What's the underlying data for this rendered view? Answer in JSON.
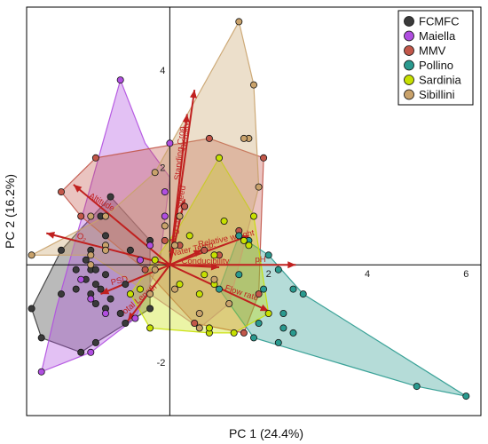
{
  "chart_data": {
    "type": "scatter",
    "title": "",
    "xlabel": "PC 1 (24.4%)",
    "ylabel": "PC 2 (16.2%)",
    "xlim": [
      -2.9,
      6.3
    ],
    "ylim": [
      -3.1,
      5.3
    ],
    "xticks": [
      "2",
      "4",
      "6"
    ],
    "yticks": [
      "4",
      "2",
      "-2"
    ],
    "legend_position": "top-right",
    "series": [
      {
        "name": "FCMFC",
        "color": "#3a3a3a",
        "hull": [
          [
            -2.8,
            -0.9
          ],
          [
            -2.2,
            0.3
          ],
          [
            -1.2,
            1.4
          ],
          [
            -0.4,
            0.5
          ],
          [
            -0.4,
            -0.9
          ],
          [
            -1.5,
            -1.6
          ],
          [
            -1.8,
            -1.8
          ],
          [
            -2.6,
            -1.5
          ]
        ],
        "points": [
          [
            -2.8,
            -0.9
          ],
          [
            -2.2,
            0.3
          ],
          [
            -1.2,
            1.4
          ],
          [
            -1.4,
            1.0
          ],
          [
            -1.3,
            0.6
          ],
          [
            -1.6,
            0.3
          ],
          [
            -1.7,
            0.1
          ],
          [
            -1.9,
            -0.1
          ],
          [
            -1.6,
            -0.1
          ],
          [
            -1.5,
            -0.1
          ],
          [
            -1.3,
            -0.2
          ],
          [
            -1.7,
            -0.3
          ],
          [
            -1.5,
            -0.4
          ],
          [
            -1.4,
            -0.5
          ],
          [
            -1.9,
            -0.5
          ],
          [
            -1.6,
            -0.6
          ],
          [
            -1.2,
            -0.7
          ],
          [
            -1.5,
            -0.8
          ],
          [
            -1.3,
            -0.9
          ],
          [
            -1.0,
            -1.0
          ],
          [
            -0.9,
            -1.2
          ],
          [
            -1.5,
            -1.6
          ],
          [
            -1.8,
            -1.8
          ],
          [
            -2.6,
            -1.5
          ],
          [
            -0.4,
            0.5
          ],
          [
            -0.4,
            -0.9
          ],
          [
            -0.8,
            0.3
          ],
          [
            -0.9,
            -0.4
          ],
          [
            -2.2,
            -0.6
          ]
        ]
      },
      {
        "name": "Maiella",
        "color": "#b04ee0",
        "hull": [
          [
            -2.6,
            -2.2
          ],
          [
            -2.3,
            -0.9
          ],
          [
            -1.0,
            3.8
          ],
          [
            -0.5,
            2.5
          ],
          [
            0.0,
            1.8
          ],
          [
            -0.2,
            0.1
          ],
          [
            -0.7,
            -1.1
          ],
          [
            -1.6,
            -1.8
          ]
        ],
        "points": [
          [
            -2.6,
            -2.2
          ],
          [
            -1.0,
            3.8
          ],
          [
            0.0,
            2.5
          ],
          [
            -0.1,
            1.5
          ],
          [
            -0.1,
            1.0
          ],
          [
            -0.4,
            0.4
          ],
          [
            -0.6,
            0.1
          ],
          [
            -1.8,
            -0.3
          ],
          [
            -1.6,
            -0.7
          ],
          [
            -1.3,
            -1.0
          ],
          [
            -0.8,
            -0.6
          ],
          [
            -1.6,
            -1.8
          ],
          [
            -0.7,
            -1.1
          ]
        ]
      },
      {
        "name": "MMV",
        "color": "#c2574a",
        "hull": [
          [
            -2.2,
            1.5
          ],
          [
            -1.5,
            2.2
          ],
          [
            0.8,
            2.6
          ],
          [
            1.9,
            2.2
          ],
          [
            1.8,
            -0.6
          ],
          [
            1.5,
            -1.4
          ],
          [
            0.5,
            -1.2
          ],
          [
            -0.5,
            -0.1
          ],
          [
            -1.8,
            1.0
          ]
        ],
        "points": [
          [
            -2.2,
            1.5
          ],
          [
            -1.5,
            2.2
          ],
          [
            0.8,
            2.6
          ],
          [
            1.9,
            2.2
          ],
          [
            1.8,
            -0.6
          ],
          [
            1.5,
            -1.4
          ],
          [
            0.5,
            -1.2
          ],
          [
            -0.5,
            -0.1
          ],
          [
            -1.8,
            1.0
          ],
          [
            0.3,
            1.2
          ],
          [
            1.0,
            0.2
          ],
          [
            0.7,
            0.3
          ],
          [
            0.2,
            0.4
          ],
          [
            1.4,
            0.7
          ],
          [
            -0.1,
            0.5
          ]
        ]
      },
      {
        "name": "Pollino",
        "color": "#2a9a8f",
        "hull": [
          [
            1.4,
            0.6
          ],
          [
            2.0,
            0.2
          ],
          [
            2.7,
            -0.6
          ],
          [
            6.0,
            -2.7
          ],
          [
            5.0,
            -2.5
          ],
          [
            1.7,
            -1.5
          ],
          [
            1.0,
            -0.5
          ]
        ],
        "points": [
          [
            1.4,
            0.6
          ],
          [
            1.6,
            0.5
          ],
          [
            2.0,
            0.2
          ],
          [
            2.2,
            -0.1
          ],
          [
            2.5,
            -0.5
          ],
          [
            2.7,
            -0.6
          ],
          [
            6.0,
            -2.7
          ],
          [
            5.0,
            -2.5
          ],
          [
            2.3,
            -1.0
          ],
          [
            2.5,
            -1.4
          ],
          [
            2.3,
            -1.3
          ],
          [
            1.8,
            -1.2
          ],
          [
            1.7,
            -1.5
          ],
          [
            2.2,
            -1.6
          ],
          [
            1.0,
            -0.5
          ],
          [
            1.4,
            -0.2
          ],
          [
            1.9,
            -0.5
          ]
        ]
      },
      {
        "name": "Sardinia",
        "color": "#c7e000",
        "hull": [
          [
            1.0,
            2.2
          ],
          [
            1.7,
            1.0
          ],
          [
            2.0,
            -1.0
          ],
          [
            1.3,
            -1.4
          ],
          [
            0.8,
            -1.4
          ],
          [
            -0.4,
            -1.3
          ],
          [
            -0.8,
            -0.6
          ],
          [
            0.2,
            0.8
          ],
          [
            0.6,
            1.5
          ]
        ],
        "points": [
          [
            1.0,
            2.2
          ],
          [
            1.7,
            1.0
          ],
          [
            2.0,
            -1.0
          ],
          [
            1.3,
            -1.4
          ],
          [
            0.8,
            -1.4
          ],
          [
            0.8,
            -1.3
          ],
          [
            -0.4,
            -1.3
          ],
          [
            -0.8,
            -0.6
          ],
          [
            -0.6,
            -0.5
          ],
          [
            -0.3,
            0.1
          ],
          [
            0.4,
            0.6
          ],
          [
            1.5,
            0.5
          ],
          [
            1.6,
            0.4
          ],
          [
            1.1,
            0.9
          ],
          [
            0.9,
            -0.4
          ],
          [
            0.6,
            -0.6
          ],
          [
            0.7,
            -0.2
          ],
          [
            0.2,
            -0.4
          ],
          [
            0.9,
            0.2
          ]
        ]
      },
      {
        "name": "Sibillini",
        "color": "#c9a26b",
        "hull": [
          [
            -2.8,
            0.2
          ],
          [
            -1.3,
            1.0
          ],
          [
            -0.3,
            1.9
          ],
          [
            1.4,
            5.0
          ],
          [
            1.7,
            3.7
          ],
          [
            1.8,
            1.6
          ],
          [
            1.2,
            -0.8
          ],
          [
            0.6,
            -1.3
          ],
          [
            -0.4,
            -0.6
          ],
          [
            -1.6,
            0.2
          ]
        ],
        "points": [
          [
            -2.8,
            0.2
          ],
          [
            -1.3,
            1.0
          ],
          [
            -0.3,
            1.9
          ],
          [
            1.4,
            5.0
          ],
          [
            1.7,
            3.7
          ],
          [
            1.6,
            2.6
          ],
          [
            1.5,
            2.6
          ],
          [
            1.8,
            1.6
          ],
          [
            1.2,
            -0.8
          ],
          [
            0.6,
            -1.3
          ],
          [
            -0.4,
            -0.6
          ],
          [
            -1.6,
            0.2
          ],
          [
            -1.3,
            0.4
          ],
          [
            -1.6,
            1.0
          ],
          [
            -0.1,
            0.8
          ],
          [
            0.2,
            1.0
          ],
          [
            0.1,
            0.4
          ],
          [
            -0.3,
            -0.1
          ],
          [
            0.9,
            -0.3
          ],
          [
            0.1,
            -0.5
          ],
          [
            -1.6,
            0.0
          ],
          [
            -1.3,
            0.3
          ],
          [
            0.6,
            -1.0
          ]
        ]
      }
    ],
    "loadings": [
      {
        "name": "Standing Crop",
        "end": [
          0.35,
          3.1
        ],
        "label_angle": -85
      },
      {
        "name": "Density",
        "end": [
          0.5,
          3.6
        ],
        "label_angle": -85
      },
      {
        "name": "Avg curr. speed",
        "end": [
          0.3,
          1.35
        ],
        "label_angle": -80
      },
      {
        "name": "Altitude",
        "end": [
          -1.95,
          1.65
        ],
        "label_angle": 30
      },
      {
        "name": "O₂",
        "end": [
          -2.5,
          0.65
        ],
        "label_angle": 20
      },
      {
        "name": "Water Temp.",
        "end": [
          0.65,
          0.3
        ],
        "label_angle": -12
      },
      {
        "name": "Relative weight",
        "end": [
          1.6,
          0.6
        ],
        "label_angle": -12
      },
      {
        "name": "pH",
        "end": [
          2.55,
          0.0
        ],
        "label_angle": 0
      },
      {
        "name": "Conducibility",
        "end": [
          1.0,
          -0.05
        ],
        "label_angle": 0
      },
      {
        "name": "Flow rate",
        "end": [
          2.0,
          -0.95
        ],
        "label_angle": 18
      },
      {
        "name": "PSD",
        "end": [
          -1.4,
          -0.6
        ],
        "label_angle": -15
      },
      {
        "name": "Total Length",
        "end": [
          -0.85,
          -1.15
        ],
        "label_angle": -40
      }
    ]
  }
}
